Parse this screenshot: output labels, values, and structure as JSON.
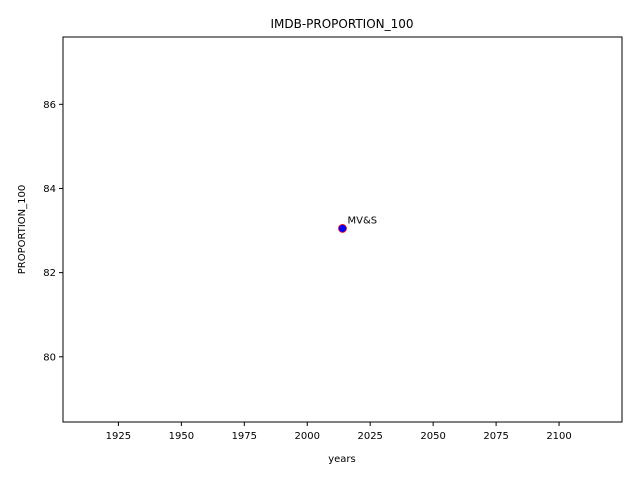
{
  "chart_data": {
    "type": "scatter",
    "title": "IMDB-PROPORTION_100",
    "xlabel": "years",
    "ylabel": "PROPORTION_100",
    "xlim": [
      1903,
      2125
    ],
    "ylim": [
      78.45,
      87.6
    ],
    "xticks": [
      1925,
      1950,
      1975,
      2000,
      2025,
      2050,
      2075,
      2100
    ],
    "yticks": [
      80,
      82,
      84,
      86
    ],
    "grid": false,
    "points": [
      {
        "x": 2014,
        "y": 83.05,
        "label": "MV&S",
        "color": "#0000ff",
        "edge_color": "#ff0000"
      }
    ]
  }
}
